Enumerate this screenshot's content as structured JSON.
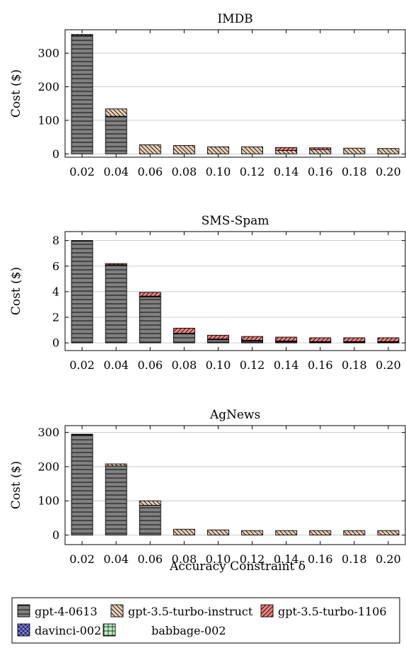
{
  "xlabel": "Accuracy Constraint δ",
  "legend": {
    "position": "bottom",
    "entries": [
      {
        "name": "gpt-4-0613",
        "color": "#808080",
        "pattern": "horizontal-lines"
      },
      {
        "name": "gpt-3.5-turbo-instruct",
        "color": "#e8cdb5",
        "pattern": "diagonal-lines"
      },
      {
        "name": "gpt-3.5-turbo-1106",
        "color": "#f08080",
        "pattern": "diagonal-lines"
      },
      {
        "name": "davinci-002",
        "color": "#7b7bea",
        "pattern": "crosshatch"
      },
      {
        "name": "babbage-002",
        "color": "#b8f0c0",
        "pattern": "grid"
      }
    ]
  },
  "chart_data": [
    {
      "type": "bar",
      "stacked": true,
      "title": "IMDB",
      "ylabel": "Cost ($)",
      "ylim": [
        -10,
        370
      ],
      "yticks": [
        0,
        100,
        200,
        300
      ],
      "categories": [
        "0.02",
        "0.04",
        "0.06",
        "0.08",
        "0.10",
        "0.12",
        "0.14",
        "0.16",
        "0.18",
        "0.20"
      ],
      "grid": true,
      "series": [
        {
          "name": "gpt-4-0613",
          "values": [
            353,
            112,
            0,
            0,
            0,
            0,
            0,
            0,
            0,
            0
          ]
        },
        {
          "name": "gpt-3.5-turbo-instruct",
          "values": [
            3,
            22,
            27,
            25,
            21,
            21,
            10,
            13,
            17,
            16
          ]
        },
        {
          "name": "gpt-3.5-turbo-1106",
          "values": [
            0,
            0,
            0,
            0,
            0,
            0,
            9,
            5,
            0,
            0
          ]
        },
        {
          "name": "davinci-002",
          "values": [
            0,
            0,
            0,
            0,
            0,
            0,
            0,
            0,
            0,
            0
          ]
        },
        {
          "name": "babbage-002",
          "values": [
            0,
            0,
            0,
            0,
            0,
            0,
            0,
            0,
            0,
            0
          ]
        }
      ]
    },
    {
      "type": "bar",
      "stacked": true,
      "title": "SMS-Spam",
      "ylabel": "Cost ($)",
      "ylim": [
        -0.6,
        8.7
      ],
      "yticks": [
        0,
        2,
        4,
        6,
        8
      ],
      "categories": [
        "0.02",
        "0.04",
        "0.06",
        "0.08",
        "0.10",
        "0.12",
        "0.14",
        "0.16",
        "0.18",
        "0.20"
      ],
      "grid": true,
      "series": [
        {
          "name": "gpt-4-0613",
          "values": [
            7.95,
            6.05,
            3.6,
            0.7,
            0.25,
            0.15,
            0.1,
            0.05,
            0.05,
            0.05
          ]
        },
        {
          "name": "gpt-3.5-turbo-instruct",
          "values": [
            0.05,
            0.05,
            0.05,
            0.05,
            0.05,
            0.05,
            0.05,
            0.05,
            0.05,
            0.05
          ]
        },
        {
          "name": "gpt-3.5-turbo-1106",
          "values": [
            0.0,
            0.1,
            0.3,
            0.4,
            0.3,
            0.3,
            0.3,
            0.3,
            0.3,
            0.3
          ]
        },
        {
          "name": "davinci-002",
          "values": [
            0,
            0,
            0,
            0,
            0,
            0,
            0,
            0,
            0,
            0
          ]
        },
        {
          "name": "babbage-002",
          "values": [
            0,
            0,
            0,
            0,
            0,
            0,
            0,
            0,
            0,
            0
          ]
        }
      ]
    },
    {
      "type": "bar",
      "stacked": true,
      "title": "AgNews",
      "ylabel": "Cost ($)",
      "ylim": [
        -28,
        320
      ],
      "yticks": [
        0,
        100,
        200,
        300
      ],
      "categories": [
        "0.02",
        "0.04",
        "0.06",
        "0.08",
        "0.10",
        "0.12",
        "0.14",
        "0.16",
        "0.18",
        "0.20"
      ],
      "grid": true,
      "series": [
        {
          "name": "gpt-4-0613",
          "values": [
            293,
            202,
            87,
            0,
            0,
            0,
            0,
            0,
            0,
            0
          ]
        },
        {
          "name": "gpt-3.5-turbo-instruct",
          "values": [
            2,
            6,
            13,
            17,
            15,
            13,
            13,
            13,
            13,
            13
          ]
        },
        {
          "name": "gpt-3.5-turbo-1106",
          "values": [
            0,
            0,
            0,
            0,
            0,
            0,
            0,
            0,
            0,
            0
          ]
        },
        {
          "name": "davinci-002",
          "values": [
            0,
            0,
            0,
            0,
            0,
            0,
            0,
            0,
            0,
            0
          ]
        },
        {
          "name": "babbage-002",
          "values": [
            0,
            0,
            0,
            0,
            0,
            0,
            0,
            0,
            0,
            0
          ]
        }
      ]
    }
  ]
}
